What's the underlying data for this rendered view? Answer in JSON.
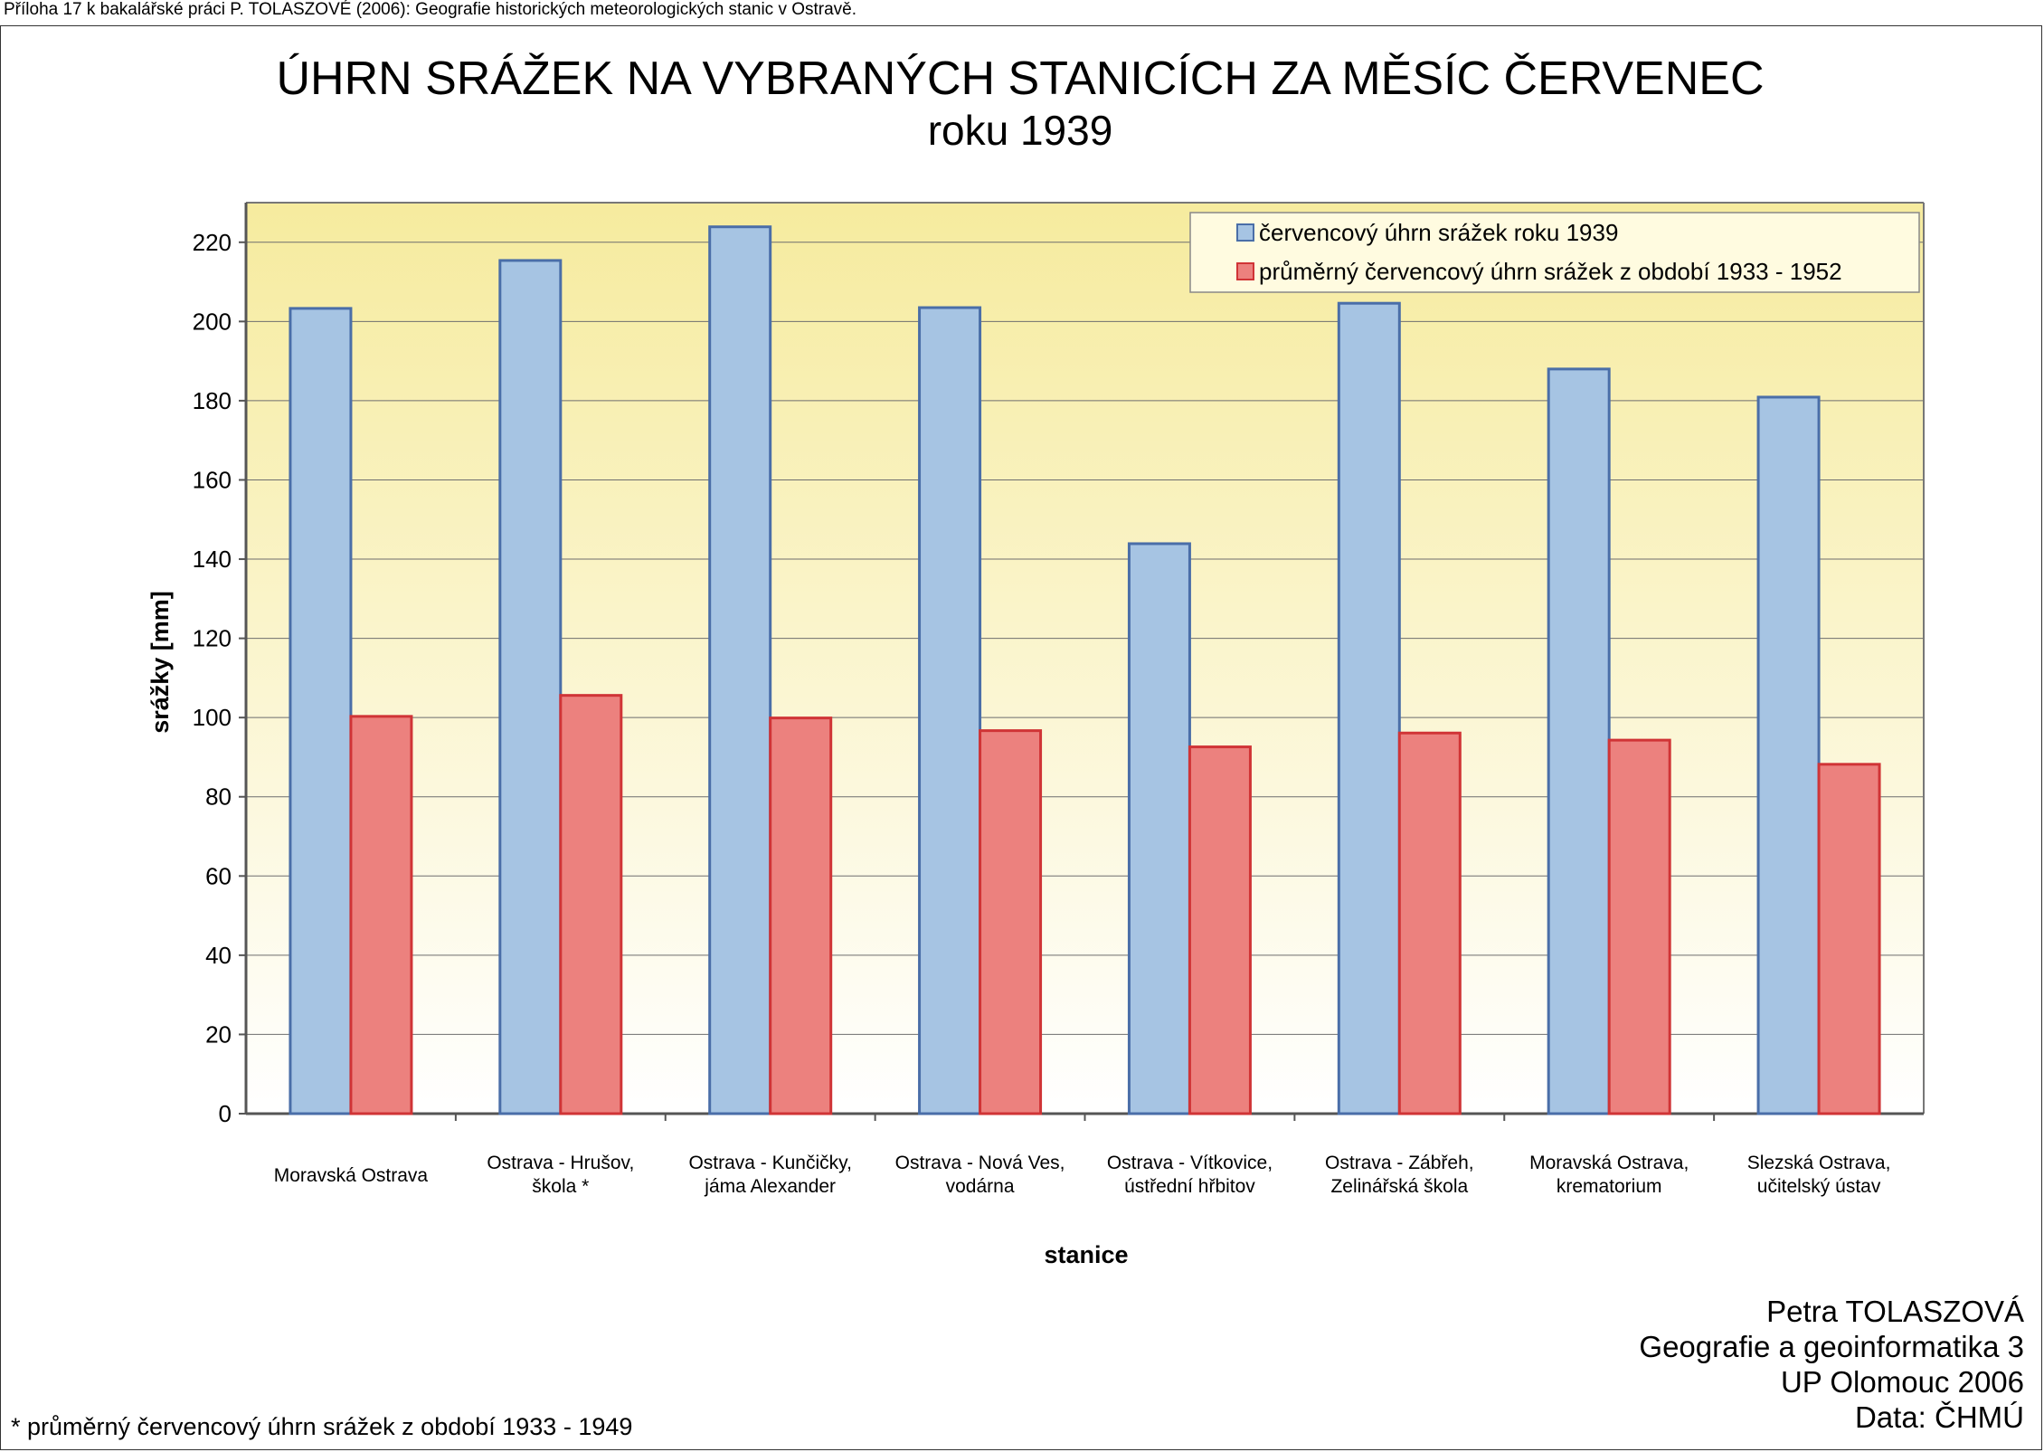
{
  "header_note": "Příloha 17 k bakalářské práci P. TOLASZOVÉ (2006): Geografie historických meteorologických stanic v Ostravě.",
  "footnote": "* průměrný červencový úhrn srážek z období 1933 - 1949",
  "credits": {
    "author": "Petra TOLASZOVÁ",
    "program": "Geografie a geoinformatika 3",
    "university": "UP Olomouc 2006",
    "source": "Data: ČHMÚ"
  },
  "colors": {
    "series_1": "#a6c4e3",
    "series_1_border": "#4a6ea8",
    "series_2": "#ec817e",
    "series_2_border": "#d03436",
    "plot_top": "#f6eb9e",
    "plot_bottom": "#ffffff"
  },
  "chart_data": {
    "type": "bar",
    "title": "ÚHRN SRÁŽEK NA VYBRANÝCH STANICÍCH ZA MĚSÍC ČERVENEC",
    "subtitle": "roku 1939",
    "xlabel": "stanice",
    "ylabel": "srážky [mm]",
    "ylim": [
      0,
      230
    ],
    "yticks": [
      0,
      20,
      40,
      60,
      80,
      100,
      120,
      140,
      160,
      180,
      200,
      220
    ],
    "grid": true,
    "legend_position": "top-right",
    "categories": [
      [
        "Moravská Ostrava"
      ],
      [
        "Ostrava - Hrušov,",
        "škola *"
      ],
      [
        "Ostrava - Kunčičky,",
        "jáma Alexander"
      ],
      [
        "Ostrava - Nová Ves,",
        "vodárna"
      ],
      [
        "Ostrava - Vítkovice,",
        "ústřední hřbitov"
      ],
      [
        "Ostrava - Zábřeh,",
        "Zelinářská škola"
      ],
      [
        "Moravská Ostrava,",
        "krematorium"
      ],
      [
        "Slezská Ostrava,",
        "učitelský ústav"
      ]
    ],
    "series": [
      {
        "name": "červencový úhrn srážek roku 1939",
        "values": [
          203.3,
          215.4,
          223.9,
          203.5,
          143.9,
          204.6,
          188.0,
          180.9
        ]
      },
      {
        "name": "průměrný červencový úhrn srážek z období 1933 - 1952",
        "values": [
          100.3,
          105.6,
          99.9,
          96.7,
          92.6,
          96.1,
          94.3,
          88.2
        ]
      }
    ]
  }
}
